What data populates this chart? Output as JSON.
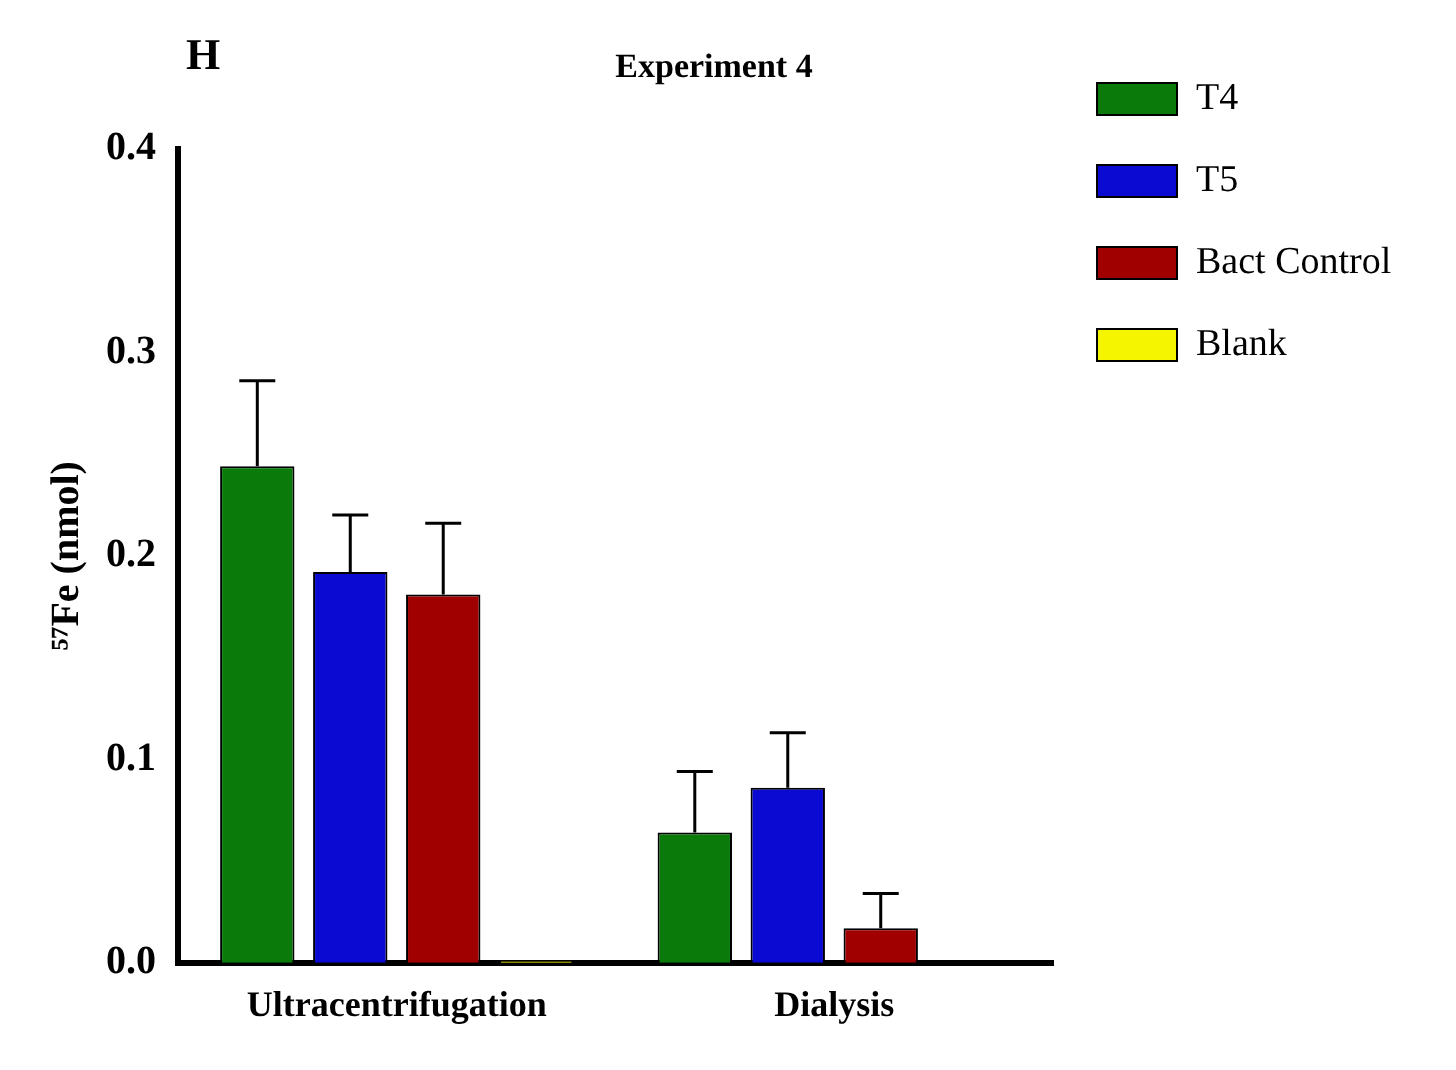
{
  "chart_data": {
    "type": "bar",
    "title": "Experiment 4",
    "ylabel": "⁵⁷Fe (nmol)",
    "annotations": [
      "H"
    ],
    "categories": [
      "Ultracentrifugation",
      "Dialysis"
    ],
    "series": [
      {
        "name": "T4",
        "color": "#0a7a0a",
        "values": [
          0.244,
          0.064
        ],
        "errors": [
          [
            0.244,
            0.286
          ],
          [
            0.064,
            0.094
          ]
        ]
      },
      {
        "name": "T5",
        "color": "#0a0ad2",
        "values": [
          0.192,
          0.086
        ],
        "errors": [
          [
            0.192,
            0.22
          ],
          [
            0.086,
            0.113
          ]
        ]
      },
      {
        "name": "Bact Control",
        "color": "#a00000",
        "values": [
          0.181,
          0.017
        ],
        "errors": [
          [
            0.181,
            0.216
          ],
          [
            0.017,
            0.034
          ]
        ]
      },
      {
        "name": "Blank",
        "color": "#f5f500",
        "values": [
          0.001,
          0
        ]
      }
    ],
    "ylim": [
      0,
      0.4
    ],
    "yticks": [
      {
        "value": 0,
        "label": "0.0"
      },
      {
        "value": 0.1,
        "label": "0.1"
      },
      {
        "value": 0.2,
        "label": "0.2"
      },
      {
        "value": 0.3,
        "label": "0.3"
      },
      {
        "value": 0.4,
        "label": "0.4"
      }
    ],
    "grid": false,
    "legend": "top right"
  }
}
